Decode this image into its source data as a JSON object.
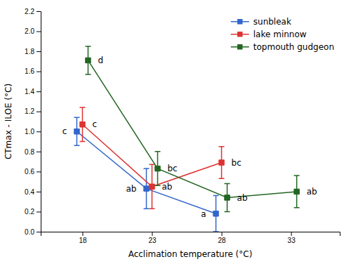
{
  "chart_data": {
    "type": "line",
    "xlabel": "Acclimation temperature (°C)",
    "ylabel": "CTmax - ILOE (°C)",
    "xlim": [
      15.0,
      36.5
    ],
    "xticks": [
      18,
      23,
      28,
      33
    ],
    "ylim": [
      0.0,
      2.2
    ],
    "yticks": [
      {
        "value": 0.0,
        "label": "0.0"
      },
      0.2,
      0.4,
      0.6,
      0.8,
      {
        "value": 1.0,
        "label": "1.0"
      },
      1.2,
      1.4,
      1.6,
      1.8,
      {
        "value": 2.0,
        "label": "2.0"
      },
      2.2
    ],
    "grid": false,
    "legend": "upper right",
    "marker": "square",
    "line_style": "solid",
    "series": [
      {
        "name": "sunbleak",
        "color": "#3366cc",
        "x": [
          18,
          23,
          28
        ],
        "values": [
          1.0,
          0.43,
          0.18
        ],
        "yerr_low": [
          0.14,
          0.2,
          0.18
        ],
        "yerr_high": [
          0.14,
          0.2,
          0.18
        ],
        "labels": [
          "c",
          "ab",
          "a"
        ]
      },
      {
        "name": "lake minnow",
        "color": "#dd3333",
        "x": [
          18,
          23,
          28
        ],
        "values": [
          1.07,
          0.45,
          0.69
        ],
        "yerr_low": [
          0.17,
          0.22,
          0.16
        ],
        "yerr_high": [
          0.17,
          0.22,
          0.16
        ],
        "labels": [
          "c",
          "ab",
          "bc"
        ]
      },
      {
        "name": "topmouth gudgeon",
        "color": "#226622",
        "x": [
          18,
          23,
          28,
          33
        ],
        "values": [
          1.71,
          0.63,
          0.34,
          0.4
        ],
        "yerr_low": [
          0.14,
          0.17,
          0.14,
          0.16
        ],
        "yerr_high": [
          0.14,
          0.17,
          0.14,
          0.16
        ],
        "labels": [
          "d",
          "bc",
          "ab",
          "ab"
        ]
      }
    ]
  }
}
